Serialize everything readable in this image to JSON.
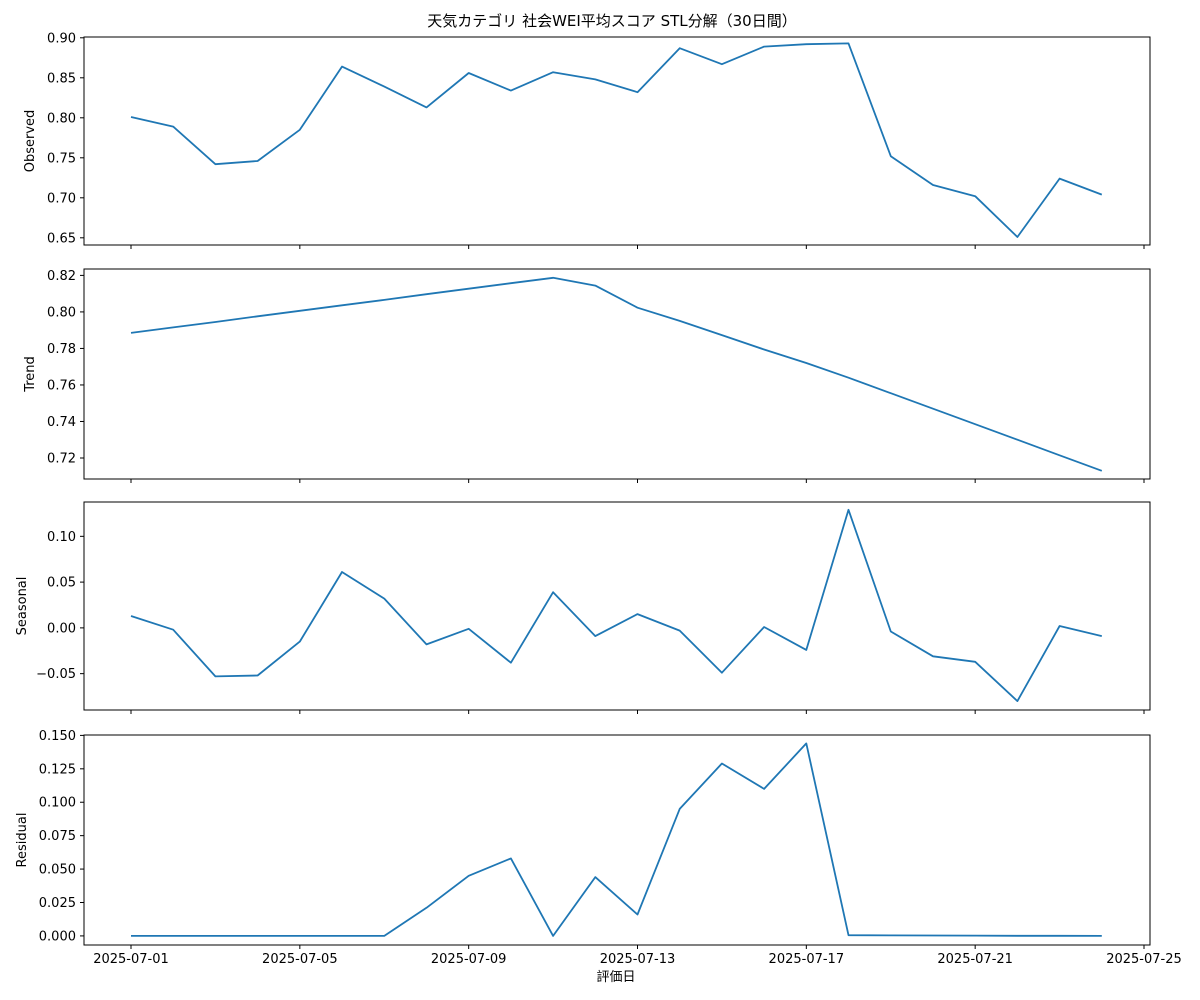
{
  "colors": {
    "line": "#1f77b4",
    "axes": "#000000",
    "background": "#ffffff"
  },
  "chart_data": {
    "type": "line",
    "title": "天気カテゴリ 社会WEI平均スコア STL分解（30日間）",
    "xlabel": "評価日",
    "grid": false,
    "x": [
      "2025-07-01",
      "2025-07-02",
      "2025-07-03",
      "2025-07-04",
      "2025-07-05",
      "2025-07-06",
      "2025-07-07",
      "2025-07-08",
      "2025-07-09",
      "2025-07-10",
      "2025-07-11",
      "2025-07-12",
      "2025-07-13",
      "2025-07-14",
      "2025-07-15",
      "2025-07-16",
      "2025-07-17",
      "2025-07-18",
      "2025-07-19",
      "2025-07-20",
      "2025-07-21",
      "2025-07-22",
      "2025-07-23",
      "2025-07-24"
    ],
    "x_ticks": [
      "2025-07-01",
      "2025-07-05",
      "2025-07-09",
      "2025-07-13",
      "2025-07-17",
      "2025-07-21",
      "2025-07-25"
    ],
    "xlim": [
      "2024-06-29",
      "2025-07-25"
    ],
    "panels": [
      {
        "ylabel": "Observed",
        "ylim": [
          0.641,
          0.901
        ],
        "y_ticks": [
          "0.65",
          "0.70",
          "0.75",
          "0.80",
          "0.85",
          "0.90"
        ],
        "values": [
          0.801,
          0.789,
          0.742,
          0.746,
          0.785,
          0.864,
          0.839,
          0.813,
          0.856,
          0.834,
          0.857,
          0.848,
          0.832,
          0.887,
          0.867,
          0.889,
          0.892,
          0.893,
          0.752,
          0.716,
          0.702,
          0.651,
          0.724,
          0.704
        ]
      },
      {
        "ylabel": "Trend",
        "ylim": [
          0.7085,
          0.8235
        ],
        "y_ticks": [
          "0.72",
          "0.74",
          "0.76",
          "0.78",
          "0.80",
          "0.82"
        ],
        "values": [
          0.7885,
          0.7915,
          0.7945,
          0.7976,
          0.8006,
          0.8036,
          0.8066,
          0.8097,
          0.8127,
          0.8157,
          0.8187,
          0.8144,
          0.8023,
          0.7951,
          0.7873,
          0.7794,
          0.772,
          0.764,
          0.7555,
          0.747,
          0.7385,
          0.73,
          0.7215,
          0.713
        ]
      },
      {
        "ylabel": "Seasonal",
        "ylim": [
          -0.0897,
          0.1375
        ],
        "y_ticks": [
          "−0.05",
          "0.00",
          "0.05",
          "0.10"
        ],
        "values": [
          0.013,
          -0.002,
          -0.053,
          -0.052,
          -0.015,
          0.061,
          0.032,
          -0.018,
          -0.001,
          -0.038,
          0.039,
          -0.009,
          0.015,
          -0.003,
          -0.049,
          0.001,
          -0.024,
          0.129,
          -0.004,
          -0.031,
          -0.037,
          -0.08,
          0.002,
          -0.009
        ]
      },
      {
        "ylabel": "Residual",
        "ylim": [
          -0.0068,
          0.1503
        ],
        "y_ticks": [
          "0.000",
          "0.025",
          "0.050",
          "0.075",
          "0.100",
          "0.125",
          "0.150"
        ],
        "values": [
          0.0,
          0.0,
          0.0,
          0.0,
          0.0,
          0.0,
          0.0,
          0.021,
          0.045,
          0.058,
          0.0,
          0.044,
          0.016,
          0.095,
          0.129,
          0.11,
          0.144,
          0.0005,
          0.0004,
          0.0003,
          0.0002,
          0.0001,
          0.0001,
          0.0
        ]
      }
    ]
  }
}
